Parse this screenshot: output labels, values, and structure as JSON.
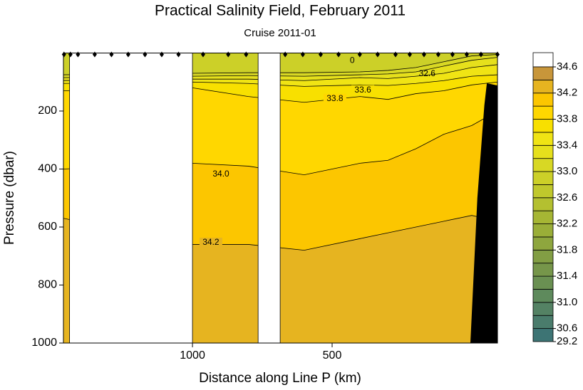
{
  "chart_data": {
    "type": "contour",
    "title": "Practical Salinity Field,  February 2011",
    "subtitle": "Cruise 2011-01",
    "x_label": "Distance along Line P  (km)",
    "y_label": "Pressure  (dbar)",
    "xlim": [
      1462,
      -92
    ],
    "xticks": [
      1000,
      500
    ],
    "ylim": [
      0,
      1000
    ],
    "yticks": [
      200,
      400,
      600,
      800,
      1000
    ],
    "y_inverted": true,
    "contours": [
      {
        "level": 33.0,
        "x": [
          1462,
          1000,
          800,
          600,
          400,
          300,
          200,
          100,
          0,
          -92
        ],
        "y": [
          75,
          70,
          68,
          68,
          65,
          60,
          50,
          30,
          10,
          5
        ]
      },
      {
        "level": 33.2,
        "x": [
          1462,
          1000,
          800,
          600,
          400,
          300,
          200,
          100,
          0,
          -92
        ],
        "y": [
          85,
          80,
          78,
          80,
          75,
          72,
          65,
          45,
          25,
          15
        ]
      },
      {
        "level": 33.4,
        "x": [
          1462,
          1000,
          800,
          600,
          400,
          300,
          200,
          100,
          0,
          -92
        ],
        "y": [
          95,
          90,
          90,
          95,
          85,
          88,
          80,
          70,
          50,
          40
        ]
      },
      {
        "level": 33.6,
        "name": "33.6",
        "label_at": [
          390,
          128
        ],
        "x": [
          1462,
          1000,
          800,
          600,
          400,
          300,
          200,
          100,
          0,
          -92
        ],
        "y": [
          105,
          100,
          105,
          115,
          110,
          112,
          105,
          95,
          80,
          75
        ]
      },
      {
        "level": 33.8,
        "name": "33.8",
        "label_at": [
          490,
          158
        ],
        "x": [
          1462,
          1000,
          800,
          600,
          400,
          300,
          200,
          100,
          0,
          -92
        ],
        "y": [
          130,
          120,
          150,
          170,
          150,
          160,
          140,
          130,
          110,
          100
        ]
      },
      {
        "level": 34.0,
        "name": "34.0",
        "label_at": [
          898,
          418
        ],
        "x": [
          1462,
          1000,
          800,
          600,
          400,
          300,
          200,
          100,
          0,
          -92
        ],
        "y": [
          400,
          380,
          390,
          420,
          380,
          370,
          330,
          280,
          250,
          200
        ]
      },
      {
        "level": 34.2,
        "name": "34.2",
        "label_at": [
          934,
          654
        ],
        "x": [
          1462,
          1000,
          800,
          600,
          400,
          300,
          200,
          100,
          0,
          -92
        ],
        "y": [
          570,
          660,
          660,
          680,
          640,
          620,
          600,
          580,
          560,
          580
        ]
      }
    ],
    "annotations": [
      {
        "text": "32.6",
        "x": 160,
        "y": 72
      },
      {
        "text": "0",
        "x": 428,
        "y": 27
      }
    ],
    "no_data": [
      [
        1440,
        1000
      ],
      [
        765,
        686
      ]
    ],
    "bottom": {
      "color": "#000000",
      "x": [
        -54,
        -92,
        -92,
        5,
        -20,
        -45
      ],
      "y": [
        104,
        112,
        1000,
        1000,
        500,
        180
      ]
    },
    "stations": [
      1460,
      1437,
      1410,
      1350,
      1290,
      1230,
      1170,
      1110,
      1050,
      962,
      872,
      808,
      668,
      605,
      541,
      477,
      401,
      337,
      273,
      222,
      171,
      120,
      69,
      18,
      -33,
      -92
    ],
    "station_color": "#000000",
    "colorbar": {
      "bounds": [
        29.2,
        30.6,
        30.8,
        31.0,
        31.2,
        31.4,
        31.6,
        31.8,
        32.0,
        32.2,
        32.4,
        32.6,
        32.8,
        33.0,
        33.2,
        33.4,
        33.6,
        33.8,
        34.0,
        34.2,
        34.4,
        34.6
      ],
      "colors": [
        "#3d7474",
        "#4a7c6c",
        "#548264",
        "#5e8a5c",
        "#6a9052",
        "#76964a",
        "#829e44",
        "#8ea63e",
        "#9aae38",
        "#a6b634",
        "#b4c030",
        "#c0c82c",
        "#ccd028",
        "#d8d824",
        "#e6e01c",
        "#f0e414",
        "#f8e000",
        "#ffd700",
        "#fcc600",
        "#e6b420",
        "#c8963a"
      ],
      "over_color": "#ffffff",
      "ticks": [
        29.2,
        30.6,
        {
          "value": 31,
          "label": "31.0"
        },
        31.4,
        31.8,
        32.2,
        32.6,
        {
          "value": 33,
          "label": "33.0"
        },
        33.4,
        33.8,
        34.2,
        34.6
      ]
    }
  }
}
